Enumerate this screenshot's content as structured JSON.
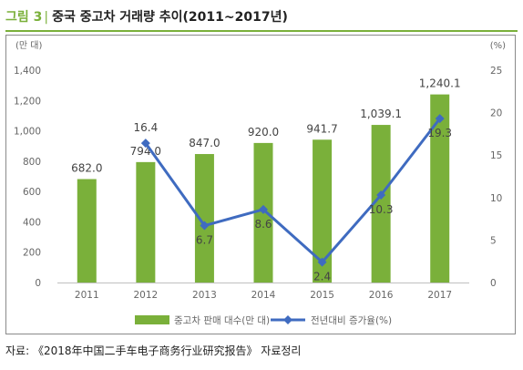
{
  "figure": {
    "label": "그림 3",
    "separator": "|",
    "title": "중국 중고차 거래량 추이(2011~2017년)"
  },
  "source": "자료: 《2018年中国二手车电子商务行业研究报告》 자료정리",
  "colors": {
    "accent": "#7AB03A",
    "bar": "#7AB03A",
    "line": "#3F6BC0",
    "axis_text": "#666666",
    "label_text": "#444444"
  },
  "chart_data": {
    "type": "bar",
    "categories": [
      "2011",
      "2012",
      "2013",
      "2014",
      "2015",
      "2016",
      "2017"
    ],
    "y_left": {
      "unit_label": "(만 대)",
      "range": [
        0,
        1400
      ],
      "ticks": [
        {
          "value": 0,
          "label": "0"
        },
        {
          "value": 200,
          "label": "200"
        },
        {
          "value": 400,
          "label": "400"
        },
        {
          "value": 600,
          "label": "600"
        },
        {
          "value": 800,
          "label": "800"
        },
        {
          "value": 1000,
          "label": "1,000"
        },
        {
          "value": 1200,
          "label": "1,200"
        },
        {
          "value": 1400,
          "label": "1,400"
        }
      ]
    },
    "y_right": {
      "unit_label": "(%)",
      "range": [
        0,
        25
      ],
      "ticks": [
        {
          "value": 0,
          "label": "0"
        },
        {
          "value": 5,
          "label": "5"
        },
        {
          "value": 10,
          "label": "10"
        },
        {
          "value": 15,
          "label": "15"
        },
        {
          "value": 20,
          "label": "20"
        },
        {
          "value": 25,
          "label": "25"
        }
      ]
    },
    "series": [
      {
        "name": "중고차 판매 대수(만 대)",
        "kind": "bar",
        "axis": "left",
        "values": [
          682.0,
          794.0,
          847.0,
          920.0,
          941.7,
          1039.1,
          1240.1
        ],
        "labels": [
          "682.0",
          "794.0",
          "847.0",
          "920.0",
          "941.7",
          "1,039.1",
          "1,240.1"
        ]
      },
      {
        "name": "전년대비 증가율(%)",
        "kind": "line",
        "axis": "right",
        "values": [
          null,
          16.4,
          6.7,
          8.6,
          2.4,
          10.3,
          19.3
        ],
        "labels": [
          null,
          "16.4",
          "6.7",
          "8.6",
          "2.4",
          "10.3",
          "19.3"
        ]
      }
    ],
    "grid": false,
    "legend_position": "bottom"
  }
}
